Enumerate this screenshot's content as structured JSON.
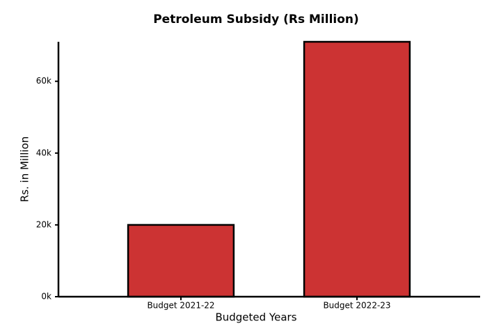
{
  "chart_data": {
    "type": "bar",
    "title": "Petroleum Subsidy (Rs Million)",
    "x_label": "Budgeted Years",
    "y_label": "Rs. in Million",
    "categories": [
      "Budget 2021-22",
      "Budget 2022-23"
    ],
    "values": [
      20000,
      71000
    ],
    "color": "#cc3333",
    "ylim": [
      0,
      71000
    ],
    "yticks": [
      {
        "value": 0,
        "label": "0k"
      },
      {
        "value": 20000,
        "label": "20k"
      },
      {
        "value": 40000,
        "label": "40k"
      },
      {
        "value": 60000,
        "label": "60k"
      }
    ],
    "grid": false
  }
}
